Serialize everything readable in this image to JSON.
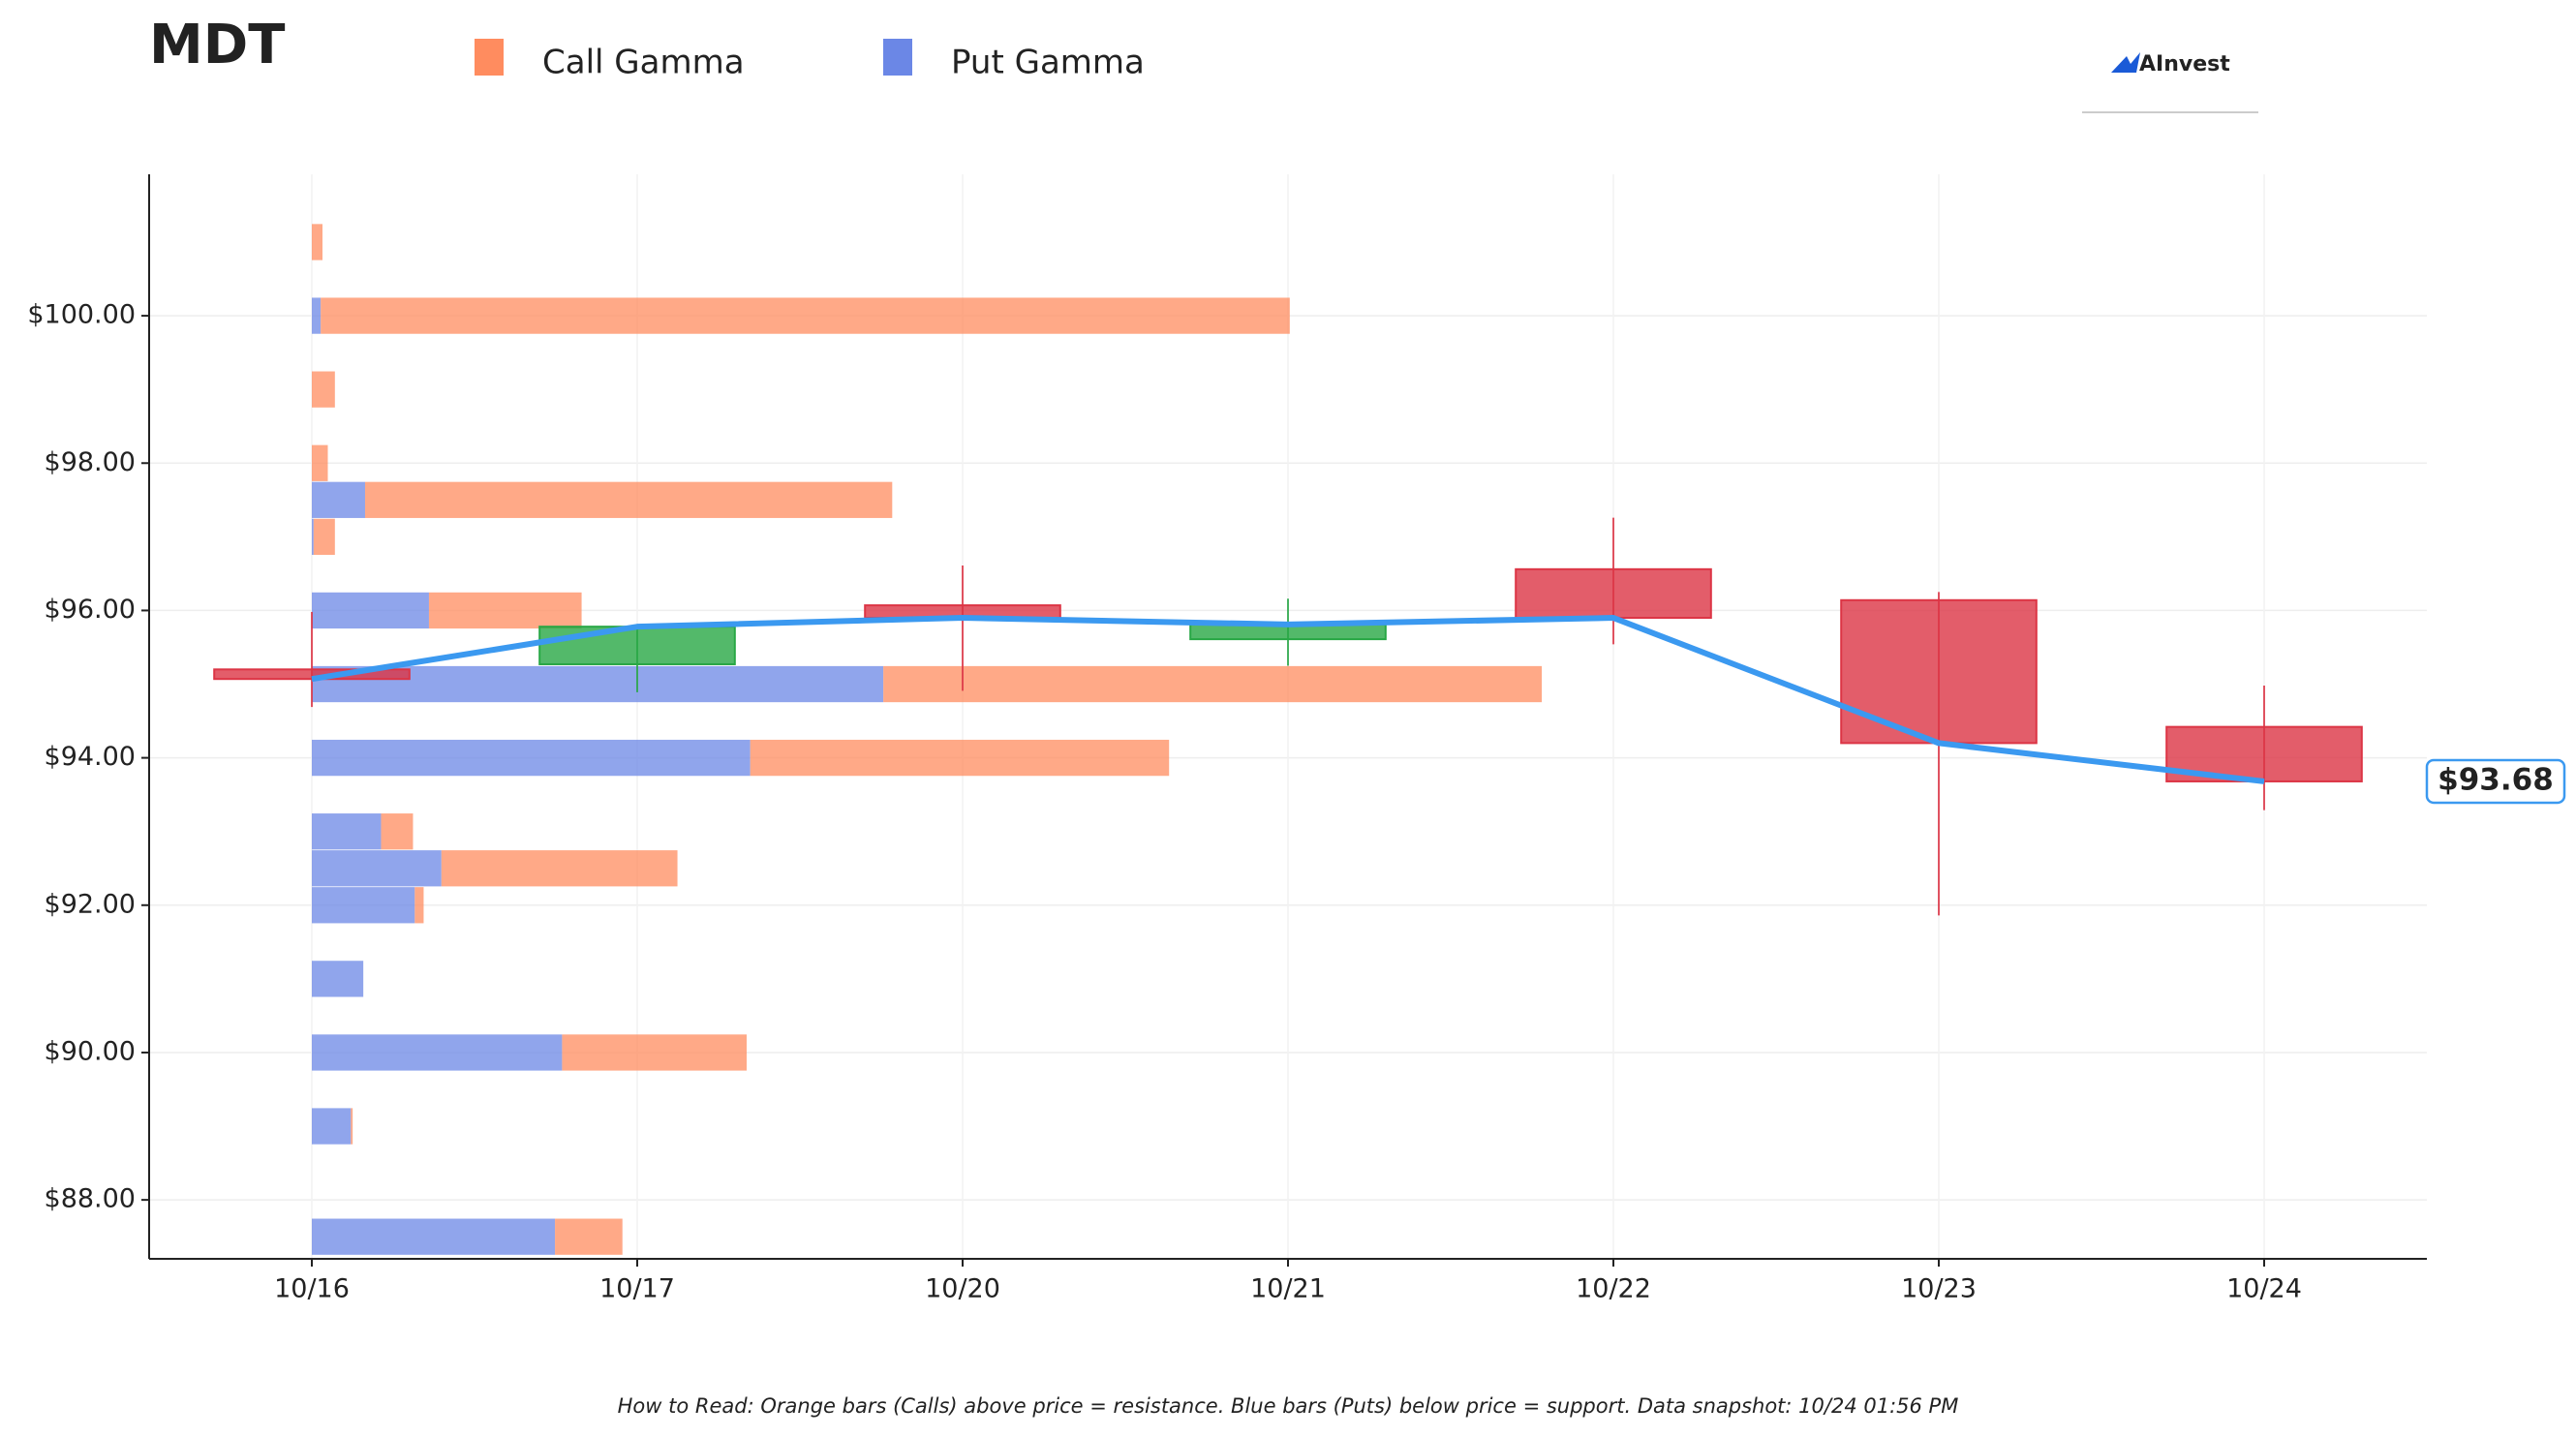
{
  "chart_data": {
    "type": "candlestick",
    "title": "MDT",
    "categories": [
      "10/16",
      "10/17",
      "10/20",
      "10/21",
      "10/22",
      "10/23",
      "10/24"
    ],
    "ohlc": {
      "open": [
        95.2,
        95.27,
        96.07,
        95.61,
        96.56,
        96.14,
        94.42
      ],
      "high": [
        95.98,
        95.8,
        96.61,
        96.16,
        97.26,
        96.25,
        94.98
      ],
      "low": [
        94.69,
        94.89,
        94.91,
        95.25,
        95.54,
        91.86,
        93.29
      ],
      "close": [
        95.07,
        95.78,
        95.9,
        95.81,
        95.9,
        94.2,
        93.68
      ],
      "up_color": "#28a745",
      "down_color": "#dc3545"
    },
    "line_color": "#3b99f0",
    "gamma": {
      "strikes": [
        101,
        100,
        99,
        98,
        97.5,
        97,
        96,
        95,
        94,
        93,
        92.5,
        92,
        91,
        90,
        89,
        87.5
      ],
      "series": [
        {
          "name": "Call Gamma",
          "color": "#ff8c5f",
          "values": [
            6,
            546,
            13,
            9,
            297,
            12,
            86,
            371,
            236,
            18,
            133,
            5,
            0,
            104,
            1,
            38
          ]
        },
        {
          "name": "Put Gamma",
          "color": "#6b87e6",
          "values": [
            0,
            5,
            0,
            0,
            30,
            1,
            66,
            322,
            247,
            39,
            73,
            58,
            29,
            141,
            22,
            137
          ]
        }
      ]
    },
    "ylim": [
      87.2,
      101.92
    ],
    "yticks": [
      {
        "value": 88,
        "label": "$88.00"
      },
      {
        "value": 90,
        "label": "$90.00"
      },
      {
        "value": 92,
        "label": "$92.00"
      },
      {
        "value": 94,
        "label": "$94.00"
      },
      {
        "value": 96,
        "label": "$96.00"
      },
      {
        "value": 98,
        "label": "$98.00"
      },
      {
        "value": 100,
        "label": "$100.00"
      }
    ],
    "grid": true,
    "price_label": {
      "value": 93.68,
      "label": "$93.68"
    },
    "note": "How to Read: Orange bars (Calls) above price = resistance. Blue bars (Puts) below price = support. Data snapshot: 10/24 01:56 PM",
    "logo": "AInvest"
  }
}
